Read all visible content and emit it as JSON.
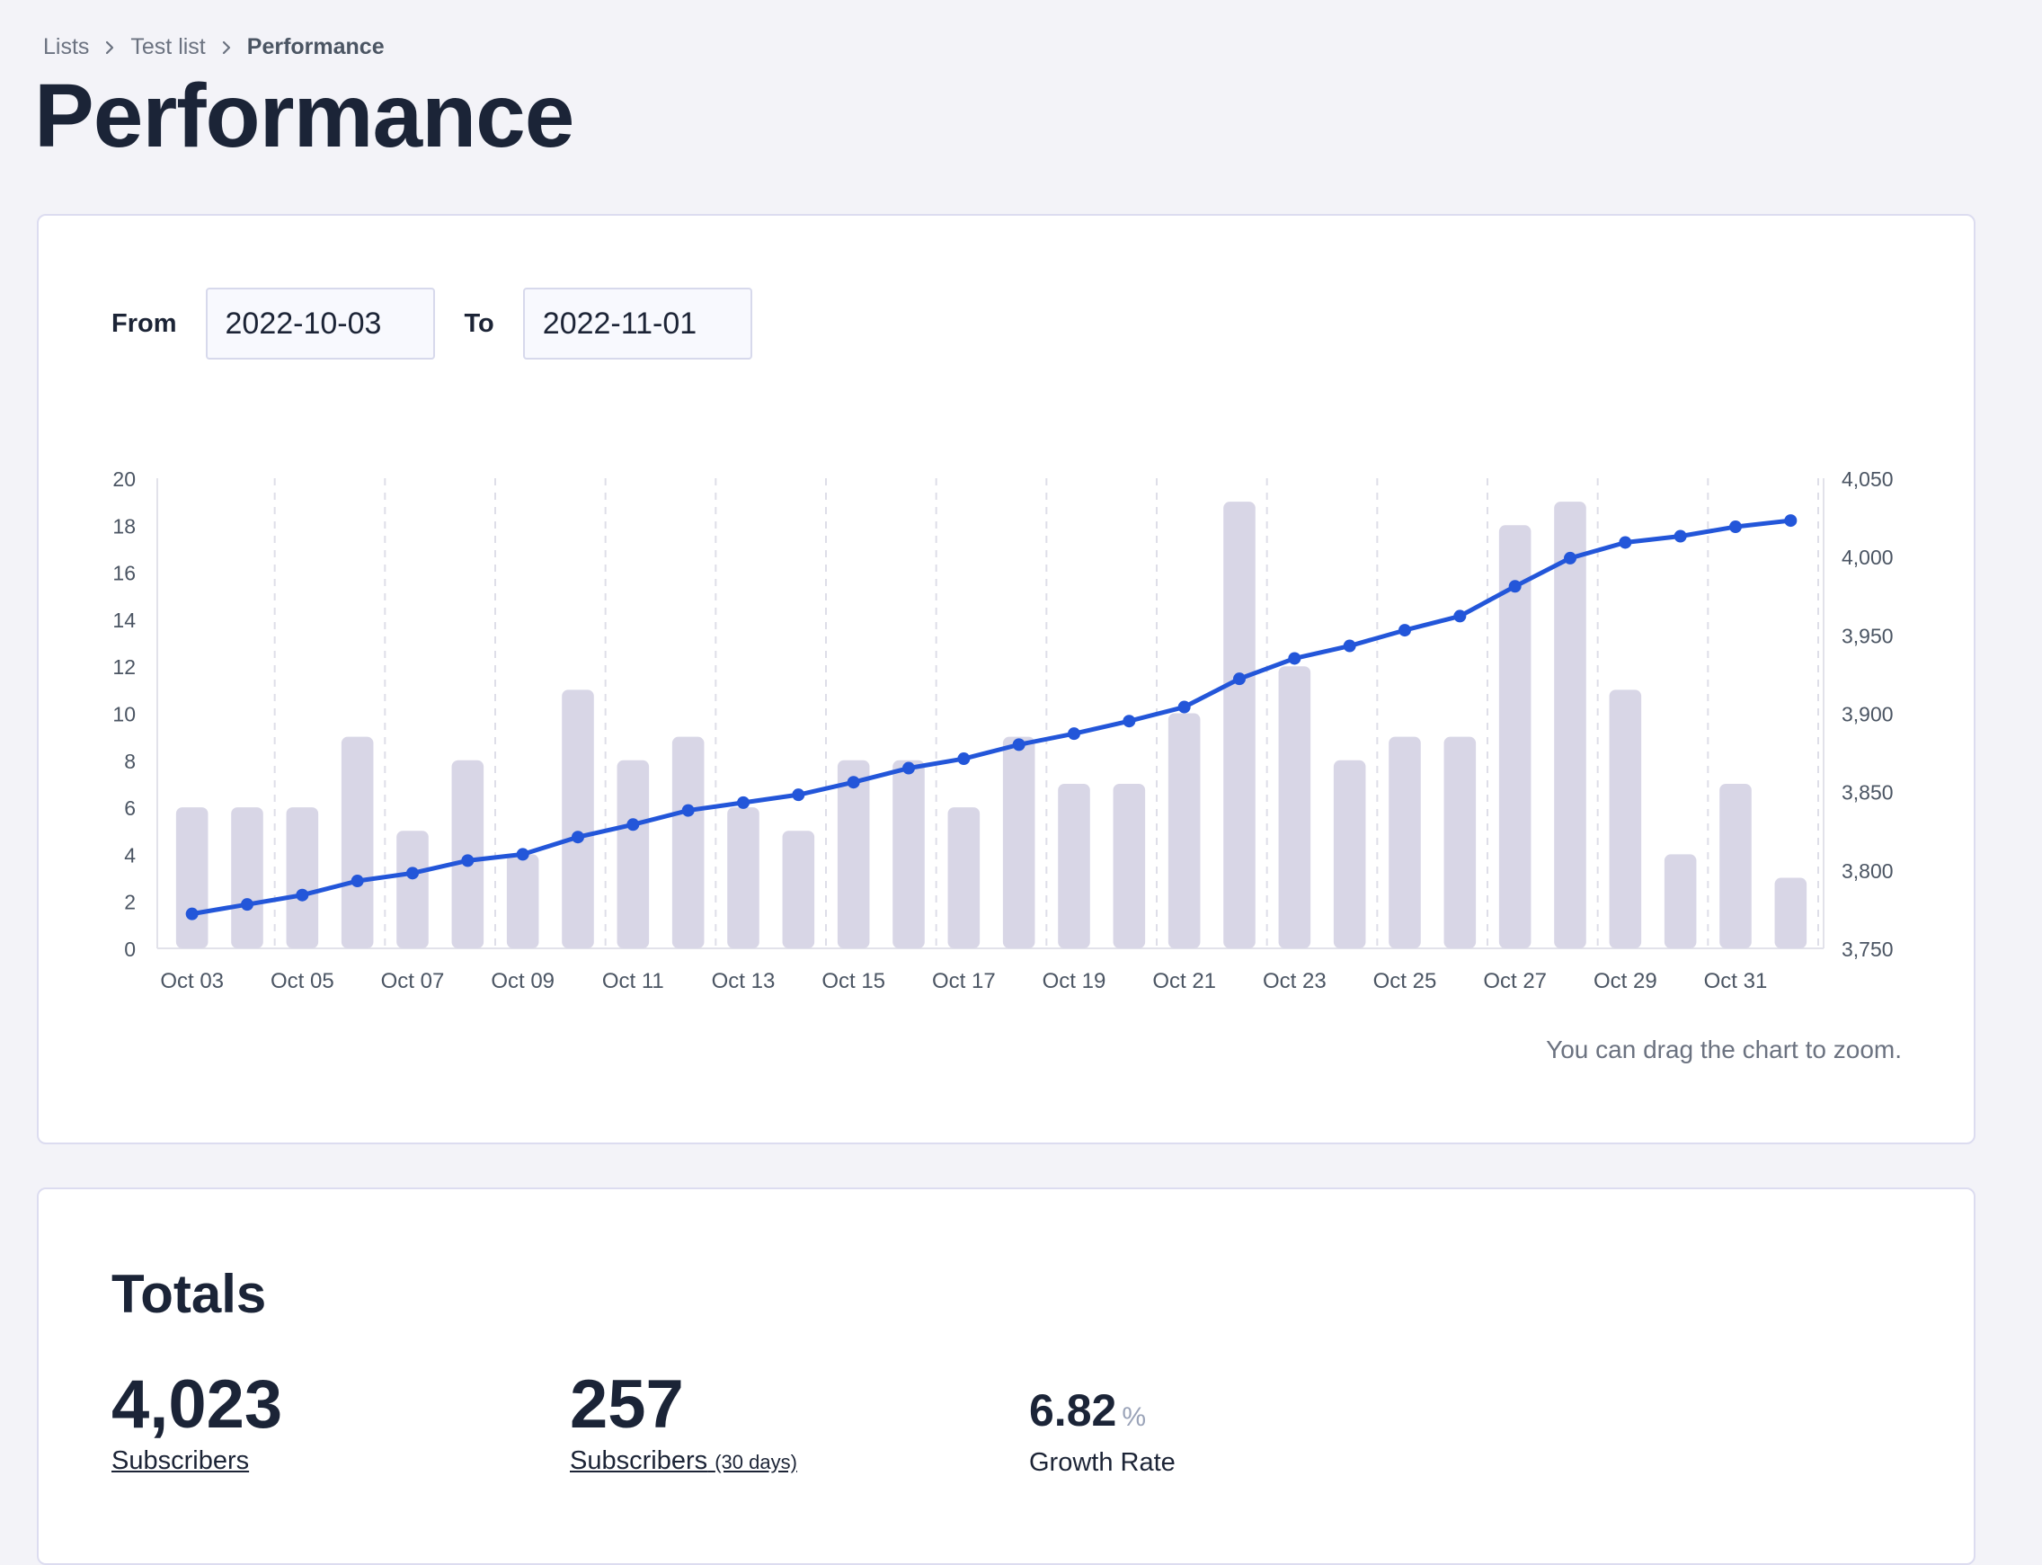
{
  "breadcrumb": {
    "items": [
      "Lists",
      "Test list"
    ],
    "current": "Performance"
  },
  "page": {
    "title": "Performance"
  },
  "range": {
    "from_label": "From",
    "from_value": "2022-10-03",
    "to_label": "To",
    "to_value": "2022-11-01"
  },
  "chart_hint": "You can drag the chart to zoom.",
  "chart_data": {
    "type": "bar+line",
    "x_tick_labels": [
      "Oct 03",
      "Oct 05",
      "Oct 07",
      "Oct 09",
      "Oct 11",
      "Oct 13",
      "Oct 15",
      "Oct 17",
      "Oct 19",
      "Oct 21",
      "Oct 23",
      "Oct 25",
      "Oct 27",
      "Oct 29",
      "Oct 31"
    ],
    "x": [
      "Oct 03",
      "Oct 04",
      "Oct 05",
      "Oct 06",
      "Oct 07",
      "Oct 08",
      "Oct 09",
      "Oct 10",
      "Oct 11",
      "Oct 12",
      "Oct 13",
      "Oct 14",
      "Oct 15",
      "Oct 16",
      "Oct 17",
      "Oct 18",
      "Oct 19",
      "Oct 20",
      "Oct 21",
      "Oct 22",
      "Oct 23",
      "Oct 24",
      "Oct 25",
      "Oct 26",
      "Oct 27",
      "Oct 28",
      "Oct 29",
      "Oct 30",
      "Oct 31",
      "Nov 01"
    ],
    "series": [
      {
        "type": "bar",
        "axis": "left",
        "color": "#d8d6e6",
        "values": [
          6,
          6,
          6,
          9,
          5,
          8,
          4,
          11,
          8,
          9,
          6,
          5,
          8,
          8,
          6,
          9,
          7,
          7,
          10,
          19,
          12,
          8,
          9,
          9,
          18,
          19,
          11,
          4,
          7,
          3
        ]
      },
      {
        "type": "line",
        "axis": "right",
        "color": "#2356d9",
        "values": [
          3772,
          3778,
          3784,
          3793,
          3798,
          3806,
          3810,
          3821,
          3829,
          3838,
          3843,
          3848,
          3856,
          3865,
          3871,
          3880,
          3887,
          3895,
          3904,
          3922,
          3935,
          3943,
          3953,
          3962,
          3981,
          3999,
          4009,
          4013,
          4019,
          4023
        ]
      }
    ],
    "y_left": {
      "min": 0,
      "max": 20,
      "ticks": [
        "0",
        "2",
        "4",
        "6",
        "8",
        "10",
        "12",
        "14",
        "16",
        "18",
        "20"
      ]
    },
    "y_right": {
      "min": 3750,
      "max": 4050,
      "ticks": [
        "3,750",
        "3,800",
        "3,850",
        "3,900",
        "3,950",
        "4,000",
        "4,050"
      ]
    },
    "grid": "vertical dashed"
  },
  "totals": {
    "title": "Totals",
    "subscribers_value": "4,023",
    "subscribers_label": "Subscribers",
    "subscribers_30_value": "257",
    "subscribers_30_label": "Subscribers",
    "subscribers_30_sub": "(30 days)",
    "growth_value": "6.82",
    "growth_unit": "%",
    "growth_label": "Growth Rate"
  }
}
